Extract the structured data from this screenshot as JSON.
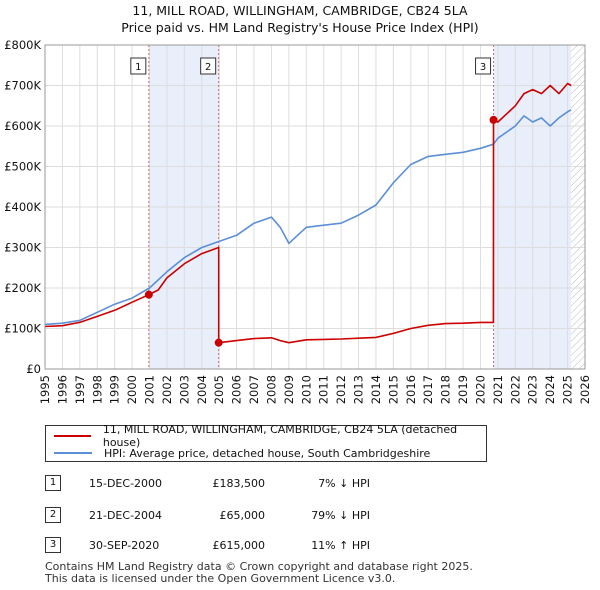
{
  "title_line1": "11, MILL ROAD, WILLINGHAM, CAMBRIDGE, CB24 5LA",
  "title_line2": "Price paid vs. HM Land Registry's House Price Index (HPI)",
  "legend": {
    "property_label": "11, MILL ROAD, WILLINGHAM, CAMBRIDGE, CB24 5LA (detached house)",
    "hpi_label": "HPI: Average price, detached house, South Cambridgeshire"
  },
  "colors": {
    "property": "#cc0000",
    "hpi": "#5b8fd6",
    "shade": "#e8eefa",
    "marker_line": "#d46a6a",
    "grid": "#dddddd"
  },
  "sales": [
    {
      "num": "1",
      "date": "15-DEC-2000",
      "price": "£183,500",
      "hpi": "7% ↓ HPI"
    },
    {
      "num": "2",
      "date": "21-DEC-2004",
      "price": "£65,000",
      "hpi": "79% ↓ HPI"
    },
    {
      "num": "3",
      "date": "30-SEP-2020",
      "price": "£615,000",
      "hpi": "11% ↑ HPI"
    }
  ],
  "footer_line1": "Contains HM Land Registry data © Crown copyright and database right 2025.",
  "footer_line2": "This data is licensed under the Open Government Licence v3.0.",
  "chart_data": {
    "type": "line",
    "title": "Price paid vs. HM Land Registry's House Price Index (HPI)",
    "xlabel": "",
    "ylabel": "",
    "xlim": [
      1995,
      2026
    ],
    "ylim": [
      0,
      800000
    ],
    "y_ticks": [
      0,
      100000,
      200000,
      300000,
      400000,
      500000,
      600000,
      700000,
      800000
    ],
    "y_tick_labels": [
      "£0",
      "£100K",
      "£200K",
      "£300K",
      "£400K",
      "£500K",
      "£600K",
      "£700K",
      "£800K"
    ],
    "x_ticks": [
      1995,
      1996,
      1997,
      1998,
      1999,
      2000,
      2001,
      2002,
      2003,
      2004,
      2005,
      2006,
      2007,
      2008,
      2009,
      2010,
      2011,
      2012,
      2013,
      2014,
      2015,
      2016,
      2017,
      2018,
      2019,
      2020,
      2021,
      2022,
      2023,
      2024,
      2025,
      2026
    ],
    "shaded_ranges": [
      [
        2000.96,
        2004.97
      ],
      [
        2020.75,
        2025.2
      ]
    ],
    "hatched_from": 2025.2,
    "markers": [
      {
        "label": "1",
        "x": 2000.96,
        "y": 183500
      },
      {
        "label": "2",
        "x": 2004.97,
        "y": 65000
      },
      {
        "label": "3",
        "x": 2020.75,
        "y": 615000
      }
    ],
    "series": [
      {
        "name": "11, MILL ROAD, WILLINGHAM, CAMBRIDGE, CB24 5LA (detached house)",
        "x": [
          1995.0,
          1996.0,
          1997.0,
          1998.0,
          1999.0,
          2000.0,
          2000.96,
          2001.5,
          2002.0,
          2003.0,
          2004.0,
          2004.97,
          2004.97,
          2006.0,
          2007.0,
          2008.0,
          2008.5,
          2009.0,
          2010.0,
          2011.0,
          2012.0,
          2013.0,
          2014.0,
          2015.0,
          2016.0,
          2017.0,
          2018.0,
          2019.0,
          2020.0,
          2020.74,
          2020.75,
          2021.0,
          2022.0,
          2022.5,
          2023.0,
          2023.5,
          2024.0,
          2024.5,
          2025.0,
          2025.2
        ],
        "y": [
          105000,
          107000,
          115000,
          130000,
          145000,
          165000,
          183500,
          195000,
          225000,
          260000,
          285000,
          300000,
          65000,
          70000,
          75000,
          77000,
          70000,
          65000,
          72000,
          73000,
          74000,
          76000,
          78000,
          88000,
          100000,
          108000,
          112000,
          113000,
          115000,
          115000,
          615000,
          610000,
          650000,
          680000,
          690000,
          680000,
          700000,
          680000,
          705000,
          700000
        ]
      },
      {
        "name": "HPI: Average price, detached house, South Cambridgeshire",
        "x": [
          1995.0,
          1996.0,
          1997.0,
          1998.0,
          1999.0,
          2000.0,
          2001.0,
          2002.0,
          2003.0,
          2004.0,
          2005.0,
          2006.0,
          2007.0,
          2008.0,
          2008.5,
          2009.0,
          2009.5,
          2010.0,
          2011.0,
          2012.0,
          2013.0,
          2014.0,
          2015.0,
          2016.0,
          2017.0,
          2018.0,
          2019.0,
          2020.0,
          2020.75,
          2021.0,
          2022.0,
          2022.5,
          2023.0,
          2023.5,
          2024.0,
          2024.5,
          2025.0,
          2025.2
        ],
        "y": [
          110000,
          113000,
          120000,
          140000,
          160000,
          175000,
          200000,
          240000,
          275000,
          300000,
          315000,
          330000,
          360000,
          375000,
          350000,
          310000,
          330000,
          350000,
          355000,
          360000,
          380000,
          405000,
          460000,
          505000,
          525000,
          530000,
          535000,
          545000,
          555000,
          570000,
          600000,
          625000,
          610000,
          620000,
          600000,
          620000,
          635000,
          640000
        ]
      }
    ]
  }
}
